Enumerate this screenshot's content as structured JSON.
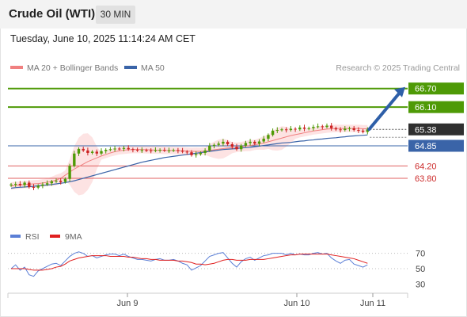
{
  "header": {
    "instrument": "Crude Oil (WTI)",
    "timeframe": "30 MIN",
    "datetime": "Tuesday, June 10, 2025 11:14:24 AM CET"
  },
  "legend": {
    "ma20_label": "MA 20 + Bollinger Bands",
    "ma50_label": "MA 50",
    "credit": "Research © 2025 Trading Central"
  },
  "colors": {
    "green": "#4e9a06",
    "blue": "#3a64a8",
    "red": "#e06060",
    "current": "#2f2f2f",
    "bull_candle": "#4e9a06",
    "bear_candle": "#cc2222",
    "bollinger_fill": "#fde3e3",
    "ma20": "#f08080",
    "rsi": "#5b7fd6",
    "rsi_ma": "#e02020"
  },
  "chart_data": [
    {
      "type": "candlestick",
      "title": "",
      "y_range": [
        62.75,
        67.0
      ],
      "x_labels": [
        "Jun 9",
        "Jun 10",
        "Jun 11"
      ],
      "levels": [
        {
          "value": 66.7,
          "label": "66.70",
          "kind": "resistance"
        },
        {
          "value": 66.1,
          "label": "66.10",
          "kind": "resistance"
        },
        {
          "value": 65.38,
          "label": "65.38",
          "kind": "current"
        },
        {
          "value": 64.85,
          "label": "64.85",
          "kind": "pivot"
        },
        {
          "value": 64.2,
          "label": "64.20",
          "kind": "support"
        },
        {
          "value": 63.8,
          "label": "63.80",
          "kind": "support"
        }
      ],
      "forecast_arrow": {
        "from": 65.38,
        "to": 66.7
      },
      "close_prices": [
        63.6,
        63.62,
        63.58,
        63.66,
        63.52,
        63.5,
        63.56,
        63.6,
        63.64,
        63.7,
        63.72,
        63.68,
        63.78,
        64.2,
        64.6,
        64.75,
        64.7,
        64.62,
        64.66,
        64.6,
        64.68,
        64.72,
        64.74,
        64.76,
        64.75,
        64.78,
        64.74,
        64.72,
        64.7,
        64.71,
        64.7,
        64.69,
        64.71,
        64.72,
        64.7,
        64.7,
        64.71,
        64.69,
        64.66,
        64.64,
        64.55,
        64.58,
        64.62,
        64.7,
        64.85,
        64.88,
        64.92,
        64.98,
        64.9,
        64.82,
        64.74,
        64.86,
        64.94,
        64.98,
        64.92,
        64.99,
        65.08,
        65.2,
        65.34,
        65.36,
        65.38,
        65.36,
        65.4,
        65.38,
        65.44,
        65.4,
        65.42,
        65.46,
        65.48,
        65.46,
        65.5,
        65.42,
        65.38,
        65.36,
        65.4,
        65.42,
        65.36,
        65.34,
        65.3,
        65.38
      ],
      "ma20": [
        63.55,
        63.57,
        63.58,
        63.6,
        63.61,
        63.62,
        63.63,
        63.65,
        63.67,
        63.7,
        63.74,
        63.8,
        63.9,
        64.0,
        64.1,
        64.18,
        64.26,
        64.34,
        64.4,
        64.46,
        64.52,
        64.57,
        64.62,
        64.66,
        64.69,
        64.71,
        64.72,
        64.73,
        64.73,
        64.73,
        64.72,
        64.72,
        64.71,
        64.71,
        64.7,
        64.7,
        64.7,
        64.69,
        64.69,
        64.68,
        64.67,
        64.67,
        64.67,
        64.68,
        64.7,
        64.72,
        64.74,
        64.76,
        64.78,
        64.79,
        64.8,
        64.82,
        64.84,
        64.86,
        64.88,
        64.91,
        64.94,
        64.98,
        65.02,
        65.06,
        65.1,
        65.14,
        65.18,
        65.21,
        65.24,
        65.27,
        65.3,
        65.33,
        65.35,
        65.37,
        65.39,
        65.4,
        65.41,
        65.41,
        65.41,
        65.41,
        65.41,
        65.41,
        65.4,
        65.4
      ],
      "ma50": [
        63.48,
        63.5,
        63.51,
        63.52,
        63.53,
        63.54,
        63.56,
        63.57,
        63.58,
        63.6,
        63.62,
        63.64,
        63.66,
        63.69,
        63.72,
        63.76,
        63.8,
        63.84,
        63.88,
        63.92,
        63.96,
        64.0,
        64.04,
        64.08,
        64.12,
        64.16,
        64.2,
        64.24,
        64.28,
        64.32,
        64.35,
        64.38,
        64.41,
        64.44,
        64.47,
        64.49,
        64.51,
        64.53,
        64.55,
        64.57,
        64.59,
        64.61,
        64.63,
        64.65,
        64.67,
        64.69,
        64.71,
        64.73,
        64.74,
        64.75,
        64.76,
        64.78,
        64.79,
        64.8,
        64.82,
        64.84,
        64.86,
        64.88,
        64.9,
        64.92,
        64.94,
        64.95,
        64.96,
        64.98,
        65.0,
        65.01,
        65.03,
        65.04,
        65.06,
        65.07,
        65.09,
        65.1,
        65.11,
        65.13,
        65.14,
        65.16,
        65.17,
        65.18,
        65.19,
        65.2
      ]
    },
    {
      "type": "line",
      "title": "",
      "series": [
        {
          "name": "RSI"
        },
        {
          "name": "9MA"
        }
      ],
      "y_ticks": [
        70,
        50,
        30
      ],
      "y_range": [
        20,
        80
      ],
      "rsi": [
        50,
        55,
        48,
        52,
        42,
        40,
        47,
        50,
        53,
        56,
        57,
        54,
        60,
        66,
        70,
        72,
        70,
        66,
        67,
        64,
        66,
        68,
        69,
        69,
        67,
        69,
        66,
        64,
        62,
        62,
        61,
        60,
        62,
        63,
        61,
        61,
        62,
        60,
        57,
        55,
        48,
        51,
        54,
        60,
        66,
        68,
        70,
        71,
        64,
        57,
        52,
        59,
        63,
        65,
        61,
        64,
        67,
        68,
        70,
        70,
        70,
        68,
        70,
        68,
        69,
        68,
        68,
        70,
        71,
        69,
        70,
        64,
        60,
        57,
        61,
        62,
        56,
        54,
        52,
        55
      ],
      "ma9": [
        50,
        50,
        50,
        50,
        49,
        48,
        48,
        48,
        49,
        50,
        52,
        53,
        56,
        60,
        62,
        64,
        65,
        66,
        67,
        67,
        67,
        67,
        66,
        66,
        66,
        66,
        65,
        65,
        64,
        63,
        63,
        62,
        62,
        61,
        61,
        61,
        61,
        60,
        60,
        59,
        58,
        56,
        56,
        55,
        56,
        57,
        59,
        61,
        62,
        62,
        61,
        61,
        61,
        62,
        62,
        62,
        62,
        63,
        64,
        65,
        66,
        67,
        68,
        68,
        69,
        69,
        69,
        69,
        69,
        69,
        69,
        68,
        67,
        66,
        65,
        64,
        63,
        61,
        59,
        57
      ]
    }
  ]
}
